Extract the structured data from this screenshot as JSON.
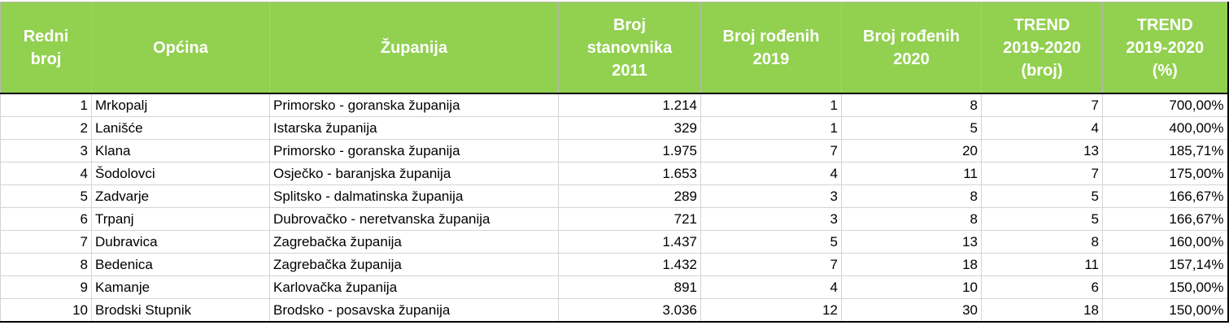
{
  "table": {
    "headers": [
      "Redni\nbroj",
      "Općina",
      "Županija",
      "Broj\nstanovnika\n2011",
      "Broj rođenih\n2019",
      "Broj rođenih\n2020",
      "TREND\n2019-2020\n(broj)",
      "TREND\n2019-2020\n(%)"
    ],
    "rows": [
      [
        "1",
        "Mrkopalj",
        "Primorsko - goranska županija",
        "1.214",
        "1",
        "8",
        "7",
        "700,00%"
      ],
      [
        "2",
        "Lanišće",
        "Istarska županija",
        "329",
        "1",
        "5",
        "4",
        "400,00%"
      ],
      [
        "3",
        "Klana",
        "Primorsko - goranska županija",
        "1.975",
        "7",
        "20",
        "13",
        "185,71%"
      ],
      [
        "4",
        "Šodolovci",
        "Osječko - baranjska županija",
        "1.653",
        "4",
        "11",
        "7",
        "175,00%"
      ],
      [
        "5",
        "Zadvarje",
        "Splitsko - dalmatinska županija",
        "289",
        "3",
        "8",
        "5",
        "166,67%"
      ],
      [
        "6",
        "Trpanj",
        "Dubrovačko - neretvanska županija",
        "721",
        "3",
        "8",
        "5",
        "166,67%"
      ],
      [
        "7",
        "Dubravica",
        "Zagrebačka županija",
        "1.437",
        "5",
        "13",
        "8",
        "160,00%"
      ],
      [
        "8",
        "Bedenica",
        "Zagrebačka županija",
        "1.432",
        "7",
        "18",
        "11",
        "157,14%"
      ],
      [
        "9",
        "Kamanje",
        "Karlovačka županija",
        "891",
        "4",
        "10",
        "6",
        "150,00%"
      ],
      [
        "10",
        "Brodski Stupnik",
        "Brodsko - posavska županija",
        "3.036",
        "12",
        "30",
        "18",
        "150,00%"
      ]
    ]
  },
  "colors": {
    "header_bg": "#92d050",
    "header_text": "#ffffff"
  }
}
